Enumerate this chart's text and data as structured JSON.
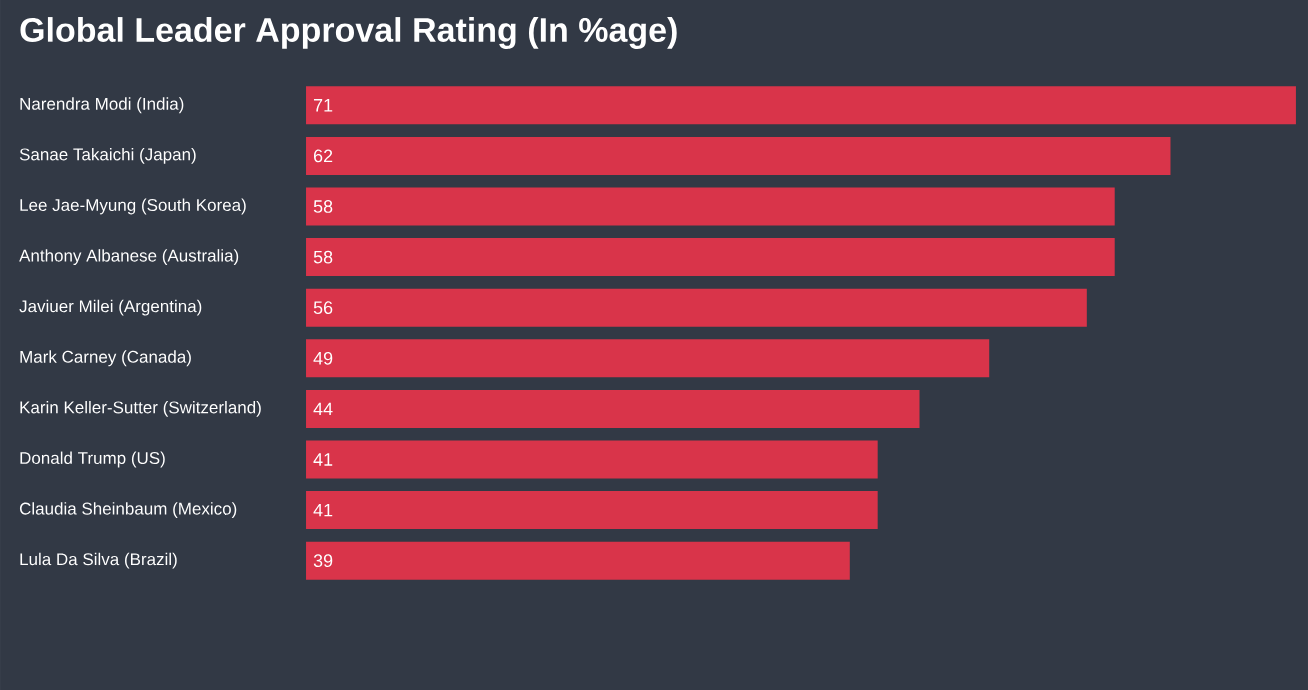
{
  "chart_data": {
    "type": "bar",
    "orientation": "horizontal",
    "title": "Global Leader Approval Rating (In %age)",
    "categories": [
      "Narendra Modi (India)",
      "Sanae Takaichi (Japan)",
      "Lee Jae-Myung (South Korea)",
      "Anthony Albanese (Australia)",
      "Javiuer Milei (Argentina)",
      "Mark Carney (Canada)",
      "Karin Keller-Sutter (Switzerland)",
      "Donald Trump (US)",
      "Claudia Sheinbaum (Mexico)",
      "Lula Da Silva (Brazil)"
    ],
    "values": [
      71,
      62,
      58,
      58,
      56,
      49,
      44,
      41,
      41,
      39
    ],
    "color": "#d9344a",
    "data_labels": true
  }
}
